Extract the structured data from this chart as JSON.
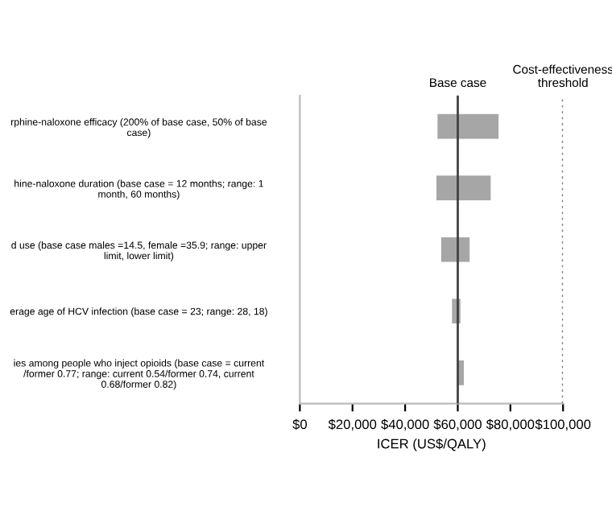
{
  "chart_data": {
    "type": "bar",
    "orientation": "horizontal",
    "categories": [
      "rphine-naloxone efficacy (200% of base case, 50% of base\ncase)",
      "hine-naloxone duration (base case = 12 months; range: 1\nmonth, 60 months)",
      "d use (base case males =14.5, female =35.9; range: upper\nlimit, lower limit)",
      "erage age of HCV infection (base case = 23; range: 28, 18)",
      "ies among people who inject opioids (base case = current\n/former 0.77; range: current 0.54/former 0.74, current\n0.68/former 0.82)"
    ],
    "base": [
      52300,
      51900,
      53700,
      57800,
      60000
    ],
    "values": [
      23200,
      20600,
      10800,
      3200,
      2300
    ],
    "color": "#a6a6a6",
    "xlabel": "ICER (US$/QALY)",
    "xlim": [
      0,
      100000
    ],
    "xticks": [
      {
        "value": 0,
        "label": "$0"
      },
      {
        "value": 20000,
        "label": "$20,000"
      },
      {
        "value": 40000,
        "label": "$40,000"
      },
      {
        "value": 60000,
        "label": "$60,000"
      },
      {
        "value": 80000,
        "label": "$80,000"
      },
      {
        "value": 100000,
        "label": "$100,000"
      }
    ],
    "ref_lines": [
      {
        "axis": "x",
        "value": 60000,
        "label": "Base case",
        "color": "#404040",
        "line_style": "solid"
      },
      {
        "axis": "x",
        "value": 100000,
        "label": "Cost-effectiveness\nthreshold",
        "color": "#808080",
        "line_style": "dotted"
      }
    ],
    "grid": false
  }
}
